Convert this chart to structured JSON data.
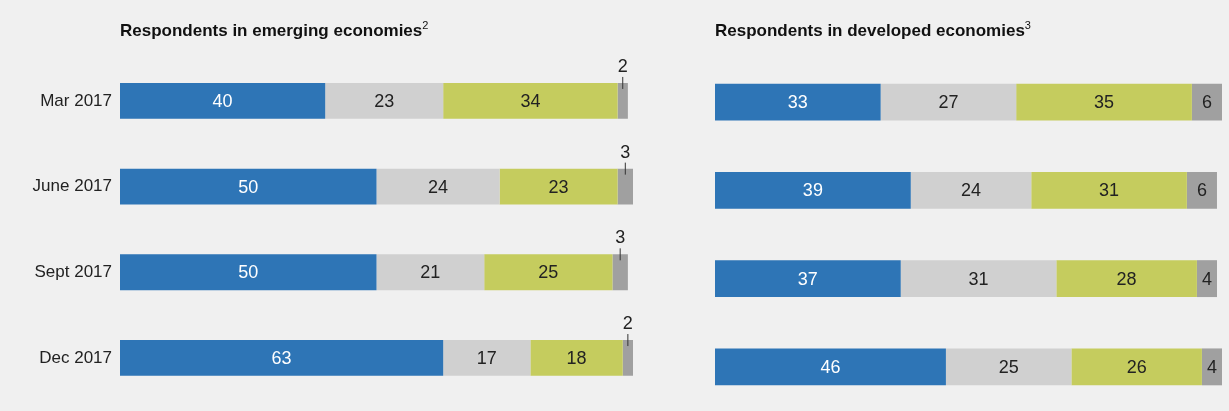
{
  "chart_data": [
    {
      "type": "bar",
      "title": "Respondents in emerging economies$^{2}$",
      "orientation": "horizontal",
      "stacked": true,
      "data_labels": true,
      "tick_labels": "y",
      "categories": [
        "Mar 2017",
        "June 2017",
        "Sept 2017",
        "Dec 2017"
      ],
      "series": [
        {
          "color": "#2e75b6",
          "values": [
            40,
            50,
            50,
            63
          ]
        },
        {
          "color": "#d0d0d0",
          "values": [
            23,
            24,
            21,
            17
          ]
        },
        {
          "color": "#c5cc5e",
          "values": [
            34,
            23,
            25,
            18
          ]
        },
        {
          "color": "#a0a0a0",
          "values": [
            2,
            3,
            3,
            2
          ]
        }
      ]
    },
    {
      "type": "bar",
      "title": "Respondents in developed economies$^{3}$",
      "orientation": "horizontal",
      "stacked": true,
      "data_labels": true,
      "tick_labels": false,
      "categories": [
        null,
        null,
        null,
        null
      ],
      "series": [
        {
          "color": "#2e75b6",
          "values": [
            33,
            39,
            37,
            46
          ]
        },
        {
          "color": "#d0d0d0",
          "values": [
            27,
            24,
            31,
            25
          ]
        },
        {
          "color": "#c5cc5e",
          "values": [
            35,
            31,
            28,
            26
          ]
        },
        {
          "color": "#a0a0a0",
          "values": [
            6,
            6,
            4,
            4
          ]
        }
      ]
    }
  ]
}
